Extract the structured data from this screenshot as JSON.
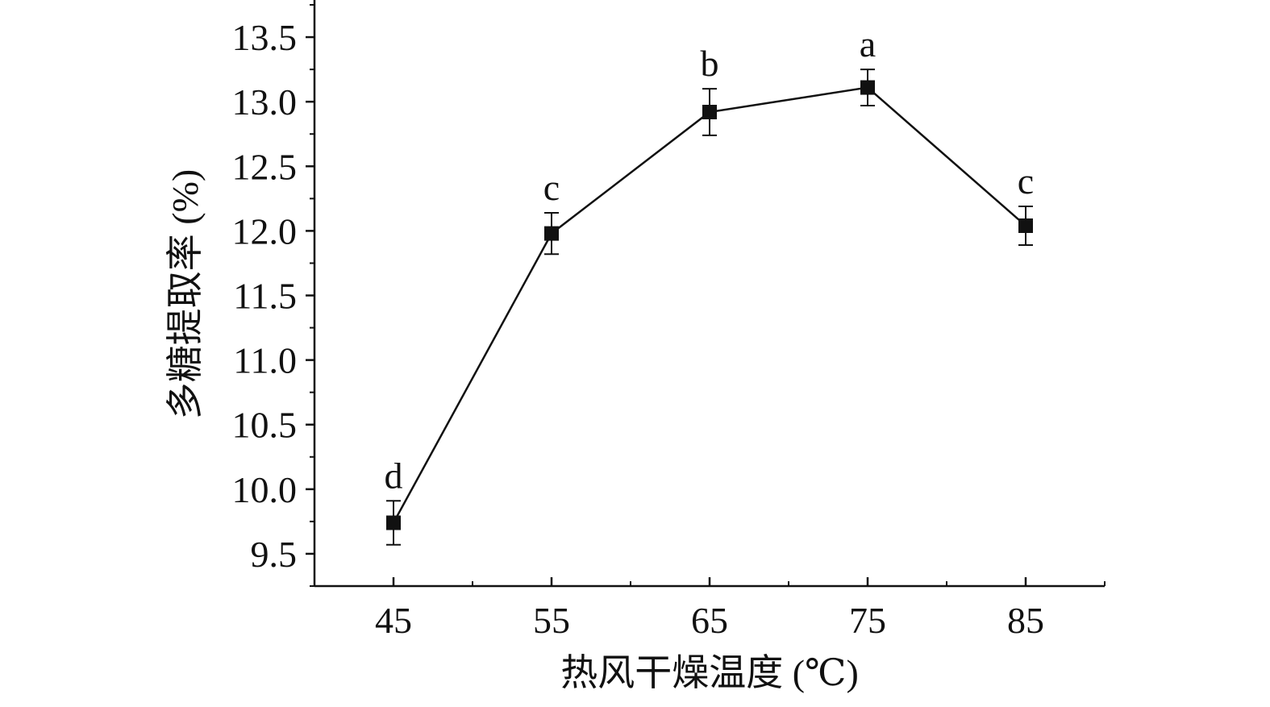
{
  "chart_data": {
    "type": "line",
    "x": [
      45,
      55,
      65,
      75,
      85
    ],
    "series": [
      {
        "values": [
          9.74,
          11.98,
          12.92,
          13.11,
          12.04
        ],
        "errors": [
          0.17,
          0.16,
          0.18,
          0.14,
          0.15
        ],
        "labels": [
          "d",
          "c",
          "b",
          "a",
          "c"
        ],
        "marker": "square",
        "color": "#111111"
      }
    ],
    "xlabel": "热风干燥温度 (℃)",
    "ylabel": "多糖提取率 (%)",
    "xlim": [
      40,
      90
    ],
    "ylim": [
      9.25,
      13.8
    ],
    "xticks": [
      45,
      55,
      65,
      75,
      85
    ],
    "xtick_labels": [
      "45",
      "55",
      "65",
      "75",
      "85"
    ],
    "yticks": [
      9.5,
      10.0,
      10.5,
      11.0,
      11.5,
      12.0,
      12.5,
      13.0,
      13.5
    ],
    "ytick_labels": [
      "9.5",
      "10.0",
      "10.5",
      "11.0",
      "11.5",
      "12.0",
      "12.5",
      "13.0",
      "13.5"
    ],
    "grid": false,
    "legend": "none"
  }
}
